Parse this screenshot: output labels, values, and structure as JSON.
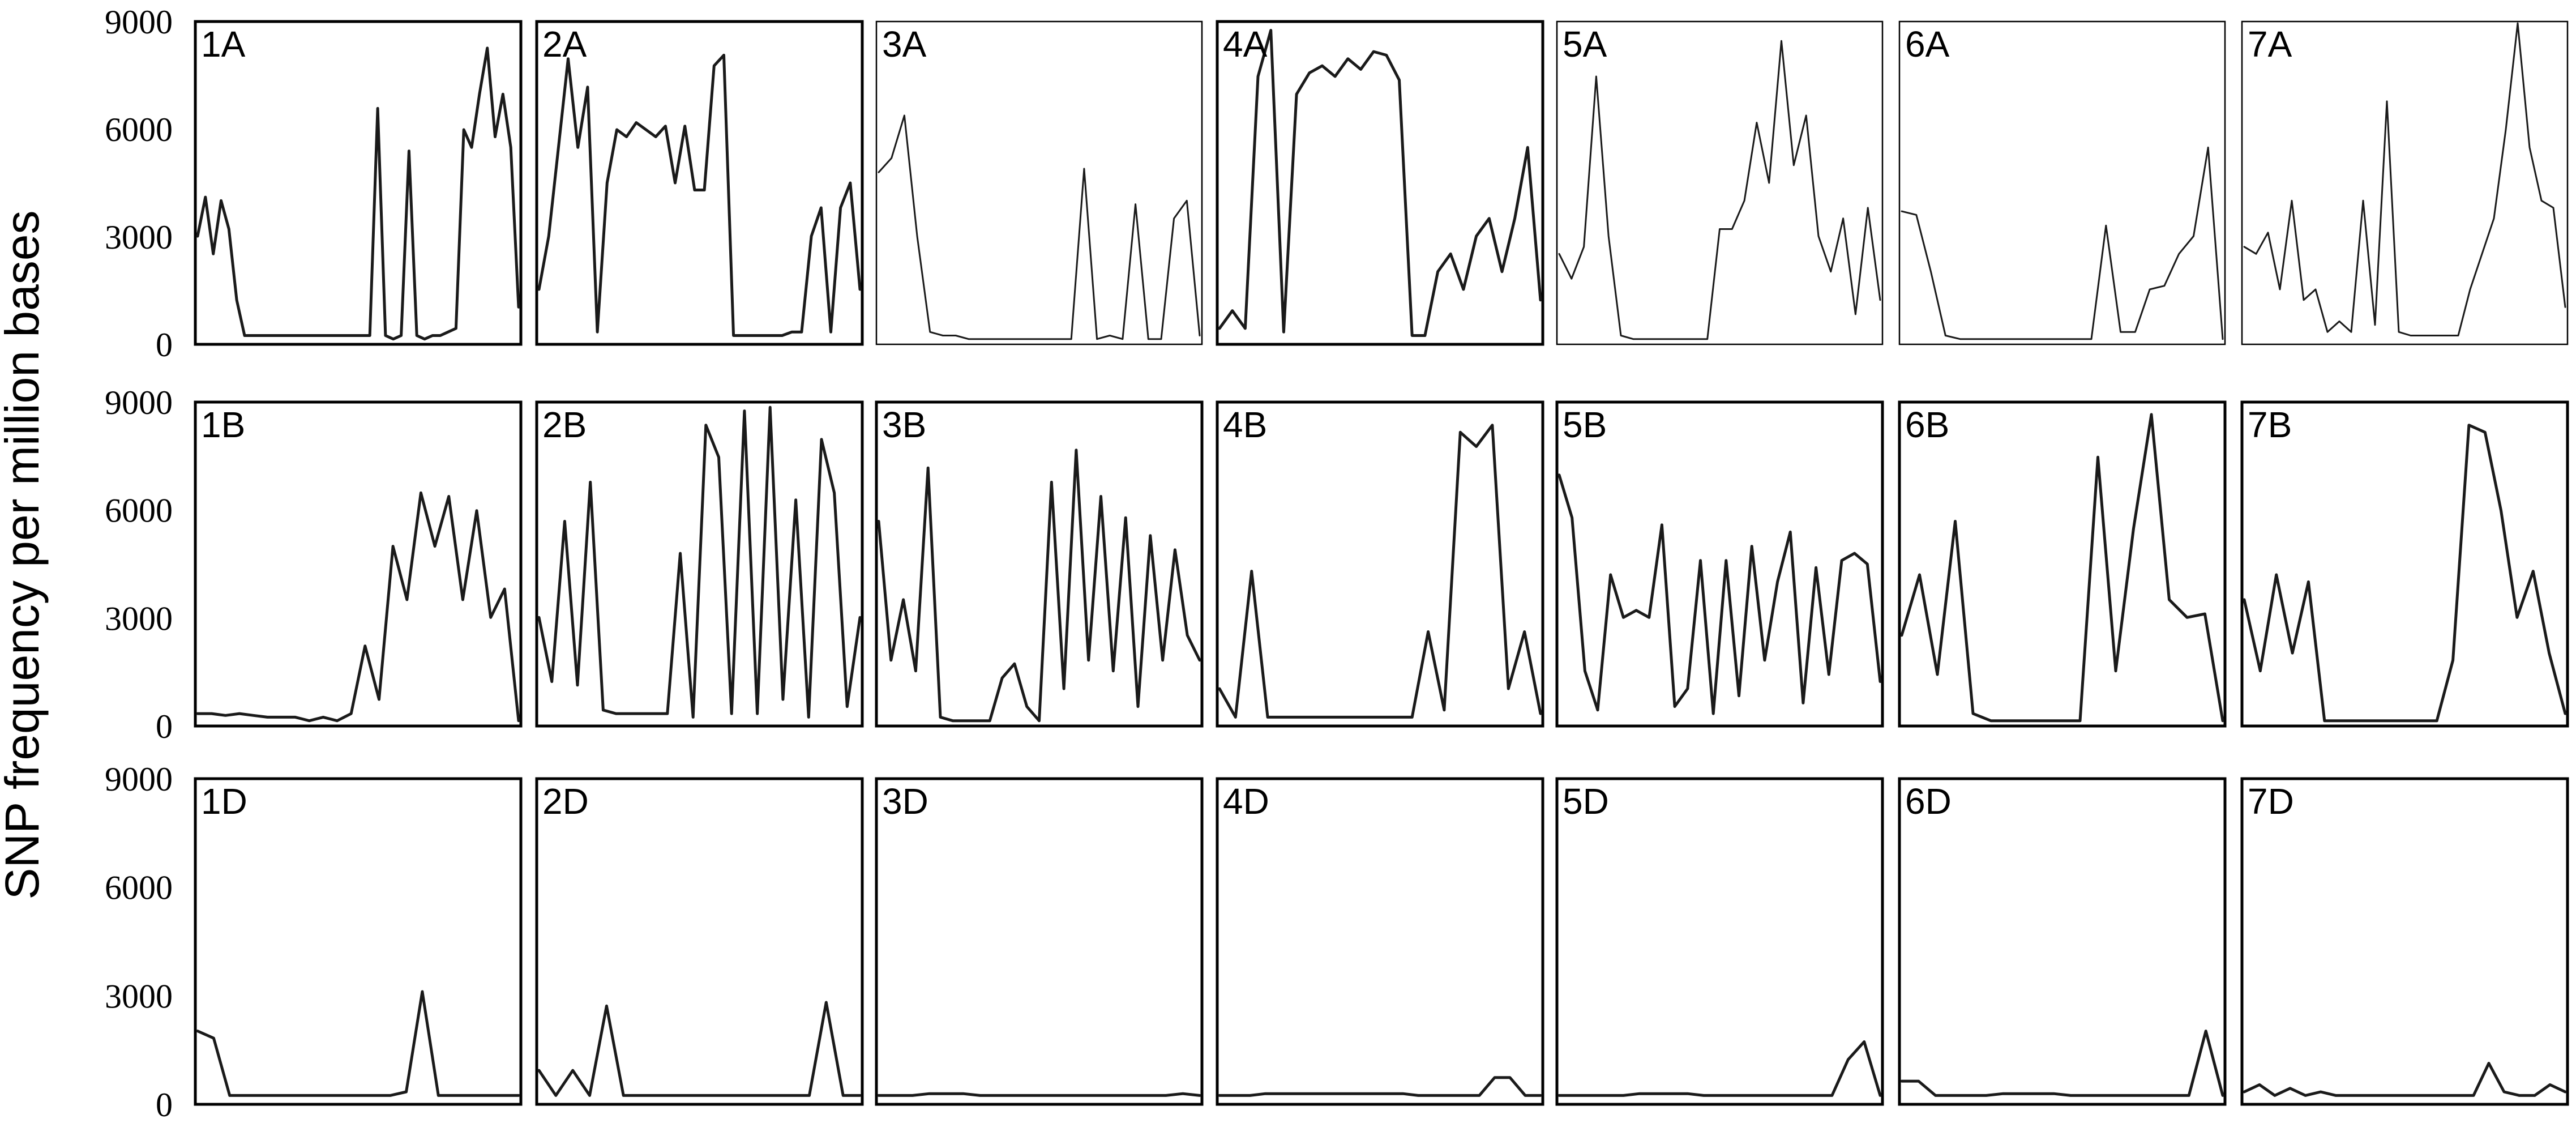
{
  "chart_data": {
    "type": "line",
    "ylabel": "SNP frequency per million bases",
    "ylim": [
      0,
      9000
    ],
    "yticks": [
      "9000",
      "6000",
      "3000",
      "0"
    ],
    "grid": false,
    "rows": [
      "A",
      "B",
      "D"
    ],
    "panels": [
      {
        "label": "1A",
        "values": [
          3000,
          4100,
          2500,
          4000,
          3200,
          1200,
          200,
          200,
          200,
          200,
          200,
          200,
          200,
          200,
          200,
          200,
          200,
          200,
          200,
          200,
          200,
          200,
          200,
          6600,
          200,
          100,
          200,
          5400,
          200,
          100,
          200,
          200,
          300,
          400,
          6000,
          5500,
          7000,
          8300,
          5800,
          7000,
          5500,
          1000
        ]
      },
      {
        "label": "2A",
        "values": [
          1500,
          3000,
          5500,
          8000,
          5500,
          7200,
          300,
          4500,
          6000,
          5800,
          6200,
          6000,
          5800,
          6100,
          4500,
          6100,
          4300,
          4300,
          7800,
          8100,
          200,
          200,
          200,
          200,
          200,
          200,
          300,
          300,
          3000,
          3800,
          300,
          3800,
          4500,
          1500
        ]
      },
      {
        "label": "3A",
        "values": [
          4800,
          5200,
          6400,
          3000,
          300,
          200,
          200,
          100,
          100,
          100,
          100,
          100,
          100,
          100,
          100,
          100,
          4900,
          100,
          200,
          100,
          3900,
          100,
          100,
          3500,
          4000,
          200
        ]
      },
      {
        "label": "4A",
        "values": [
          400,
          900,
          400,
          7500,
          8800,
          300,
          7000,
          7600,
          7800,
          7500,
          8000,
          7700,
          8200,
          8100,
          7400,
          200,
          200,
          2000,
          2500,
          1500,
          3000,
          3500,
          2000,
          3500,
          5500,
          1200
        ]
      },
      {
        "label": "5A",
        "values": [
          2500,
          1800,
          2700,
          7500,
          3000,
          200,
          100,
          100,
          100,
          100,
          100,
          100,
          100,
          3200,
          3200,
          4000,
          6200,
          4500,
          8500,
          5000,
          6400,
          3000,
          2000,
          3500,
          800,
          3800,
          1200
        ]
      },
      {
        "label": "6A",
        "values": [
          3700,
          3600,
          2000,
          200,
          100,
          100,
          100,
          100,
          100,
          100,
          100,
          100,
          100,
          100,
          3300,
          300,
          300,
          1500,
          1600,
          2500,
          3000,
          5500,
          100
        ]
      },
      {
        "label": "7A",
        "values": [
          2700,
          2500,
          3100,
          1500,
          4000,
          1200,
          1500,
          300,
          600,
          300,
          4000,
          500,
          6800,
          300,
          200,
          200,
          200,
          200,
          200,
          1500,
          2500,
          3500,
          6000,
          9200,
          5500,
          4000,
          3800,
          1000
        ]
      },
      {
        "label": "1B",
        "values": [
          300,
          300,
          250,
          300,
          250,
          200,
          200,
          200,
          100,
          200,
          100,
          300,
          2200,
          700,
          5000,
          3500,
          6500,
          5000,
          6400,
          3500,
          6000,
          3000,
          3800,
          100
        ]
      },
      {
        "label": "2B",
        "values": [
          3000,
          1200,
          5700,
          1100,
          6800,
          400,
          300,
          300,
          300,
          300,
          300,
          4800,
          200,
          8400,
          7500,
          300,
          8800,
          300,
          8900,
          700,
          6300,
          200,
          8000,
          6500,
          500,
          3000
        ]
      },
      {
        "label": "3B",
        "values": [
          5700,
          1800,
          3500,
          1500,
          7200,
          200,
          100,
          100,
          100,
          100,
          1300,
          1700,
          500,
          100,
          6800,
          1000,
          7700,
          1800,
          6400,
          1500,
          5800,
          500,
          5300,
          1800,
          4900,
          2500,
          1800
        ]
      },
      {
        "label": "4B",
        "values": [
          1000,
          200,
          4300,
          200,
          200,
          200,
          200,
          200,
          200,
          200,
          200,
          200,
          200,
          2600,
          400,
          8200,
          7800,
          8400,
          1000,
          2600,
          300
        ]
      },
      {
        "label": "5B",
        "values": [
          7000,
          5800,
          1500,
          400,
          4200,
          3000,
          3200,
          3000,
          5600,
          500,
          1000,
          4600,
          300,
          4600,
          800,
          5000,
          1800,
          4000,
          5400,
          600,
          4400,
          1400,
          4600,
          4800,
          4500,
          1200
        ]
      },
      {
        "label": "6B",
        "values": [
          2500,
          4200,
          1400,
          5700,
          300,
          100,
          100,
          100,
          100,
          100,
          100,
          7500,
          1500,
          5500,
          8700,
          3500,
          3000,
          3100,
          100
        ]
      },
      {
        "label": "7B",
        "values": [
          3500,
          1500,
          4200,
          2000,
          4000,
          100,
          100,
          100,
          100,
          100,
          100,
          100,
          100,
          1800,
          8400,
          8200,
          6000,
          3000,
          4300,
          2000,
          300
        ]
      },
      {
        "label": "1D",
        "values": [
          2000,
          1800,
          200,
          200,
          200,
          200,
          200,
          200,
          200,
          200,
          200,
          200,
          200,
          300,
          3100,
          200,
          200,
          200,
          200,
          200,
          200
        ]
      },
      {
        "label": "2D",
        "values": [
          900,
          200,
          900,
          200,
          2700,
          200,
          200,
          200,
          200,
          200,
          200,
          200,
          200,
          200,
          200,
          200,
          200,
          2800,
          200,
          200
        ]
      },
      {
        "label": "3D",
        "values": [
          200,
          200,
          200,
          250,
          250,
          250,
          200,
          200,
          200,
          200,
          200,
          200,
          200,
          200,
          200,
          200,
          200,
          200,
          250,
          200
        ]
      },
      {
        "label": "4D",
        "values": [
          200,
          200,
          200,
          250,
          250,
          250,
          250,
          250,
          250,
          250,
          250,
          250,
          250,
          200,
          200,
          200,
          200,
          200,
          700,
          700,
          200,
          200
        ]
      },
      {
        "label": "5D",
        "values": [
          200,
          200,
          200,
          200,
          200,
          250,
          250,
          250,
          250,
          200,
          200,
          200,
          200,
          200,
          200,
          200,
          200,
          200,
          1200,
          1700,
          200
        ]
      },
      {
        "label": "6D",
        "values": [
          600,
          600,
          200,
          200,
          200,
          200,
          250,
          250,
          250,
          250,
          200,
          200,
          200,
          200,
          200,
          200,
          200,
          200,
          2000,
          200
        ]
      },
      {
        "label": "7D",
        "values": [
          300,
          500,
          200,
          400,
          200,
          300,
          200,
          200,
          200,
          200,
          200,
          200,
          200,
          200,
          200,
          200,
          1100,
          300,
          200,
          200,
          500,
          300
        ]
      }
    ]
  }
}
